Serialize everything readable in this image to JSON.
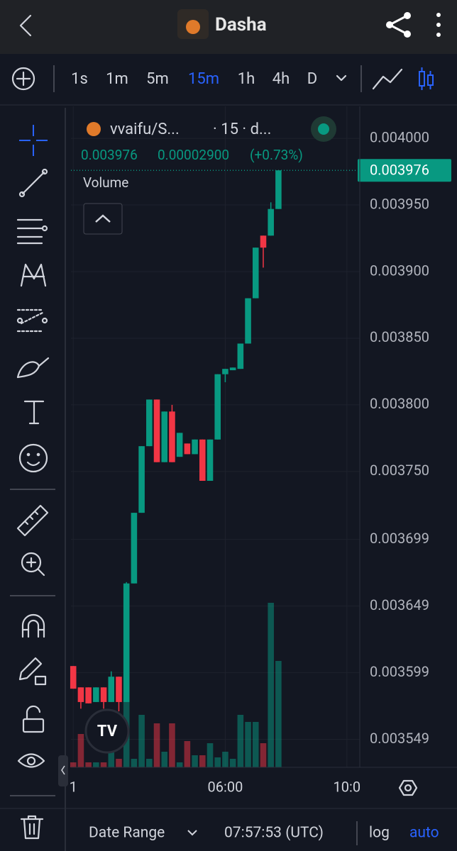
{
  "header": {
    "title": "Dasha"
  },
  "toolbar": {
    "intervals": [
      "1s",
      "1m",
      "5m",
      "15m",
      "1h",
      "4h",
      "D"
    ],
    "active": 3
  },
  "legend": {
    "symbol": "vvaifu/S...",
    "interval": "· 15 · d...",
    "price": "0.003976",
    "change": "0.00002900",
    "change_pct": "(+0.73%)",
    "volume": "Volume"
  },
  "chart_data": {
    "type": "candlestick",
    "up_color": "#089981",
    "down_color": "#f23645",
    "open": [
      0.003604,
      0.003588,
      0.003588,
      0.003577,
      0.003588,
      0.003577,
      0.003596,
      0.003577,
      0.003666,
      0.003719,
      0.003769,
      0.003804,
      0.003757,
      0.003795,
      0.003761,
      0.003771,
      0.003763,
      0.003774,
      0.003743,
      0.003774,
      0.003823,
      0.003826,
      0.003827,
      0.003846,
      0.00388,
      0.003927,
      0.003927,
      0.003947
    ],
    "high": [
      0.003604,
      0.003588,
      0.003588,
      0.003588,
      0.003588,
      0.0036,
      0.003596,
      0.003667,
      0.003719,
      0.003769,
      0.003804,
      0.003804,
      0.003795,
      0.0038,
      0.003779,
      0.003771,
      0.003774,
      0.003774,
      0.003774,
      0.003823,
      0.003827,
      0.003828,
      0.003846,
      0.00388,
      0.003918,
      0.003927,
      0.003952,
      0.003976
    ],
    "low": [
      0.003587,
      0.003572,
      0.003576,
      0.003577,
      0.003572,
      0.003577,
      0.00357,
      0.003577,
      0.003666,
      0.003719,
      0.003769,
      0.003757,
      0.003757,
      0.003757,
      0.003761,
      0.003763,
      0.003763,
      0.003743,
      0.003743,
      0.003774,
      0.003817,
      0.003826,
      0.003827,
      0.003846,
      0.00388,
      0.003903,
      0.003927,
      0.003947
    ],
    "close": [
      0.003587,
      0.003577,
      0.003576,
      0.003588,
      0.003577,
      0.003596,
      0.003577,
      0.003666,
      0.003719,
      0.003769,
      0.003804,
      0.003757,
      0.003795,
      0.003757,
      0.003779,
      0.003763,
      0.003774,
      0.003743,
      0.003774,
      0.003823,
      0.003827,
      0.003828,
      0.003846,
      0.00388,
      0.003918,
      0.003918,
      0.003947,
      0.003976
    ],
    "volume": [
      7,
      47,
      7,
      7,
      7,
      27,
      12,
      97,
      12,
      74,
      12,
      62,
      22,
      62,
      7,
      37,
      17,
      17,
      34,
      14,
      22,
      12,
      74,
      64,
      64,
      34,
      232,
      150
    ],
    "vlim": [
      0,
      300
    ],
    "xlim": [
      -0.3,
      37.7
    ],
    "xticks": [
      {
        "value": 0,
        "label": "1"
      },
      {
        "value": 20,
        "label": "06:00"
      },
      {
        "value": 36,
        "label": "10:0"
      }
    ],
    "ylim": [
      0.003528,
      0.004024
    ],
    "yticks": [
      {
        "value": 0.004,
        "label": "0.004000"
      },
      {
        "value": 0.00395,
        "label": "0.003950"
      },
      {
        "value": 0.0039,
        "label": "0.003900"
      },
      {
        "value": 0.00385,
        "label": "0.003850"
      },
      {
        "value": 0.0038,
        "label": "0.003800"
      },
      {
        "value": 0.00375,
        "label": "0.003750"
      },
      0.003699,
      0.003649,
      0.003599,
      0.003549
    ],
    "last_price": 0.003976,
    "grid": true
  },
  "footer": {
    "range": "Date Range",
    "time": "07:57:53 (UTC)",
    "log": "log",
    "auto": "auto"
  }
}
